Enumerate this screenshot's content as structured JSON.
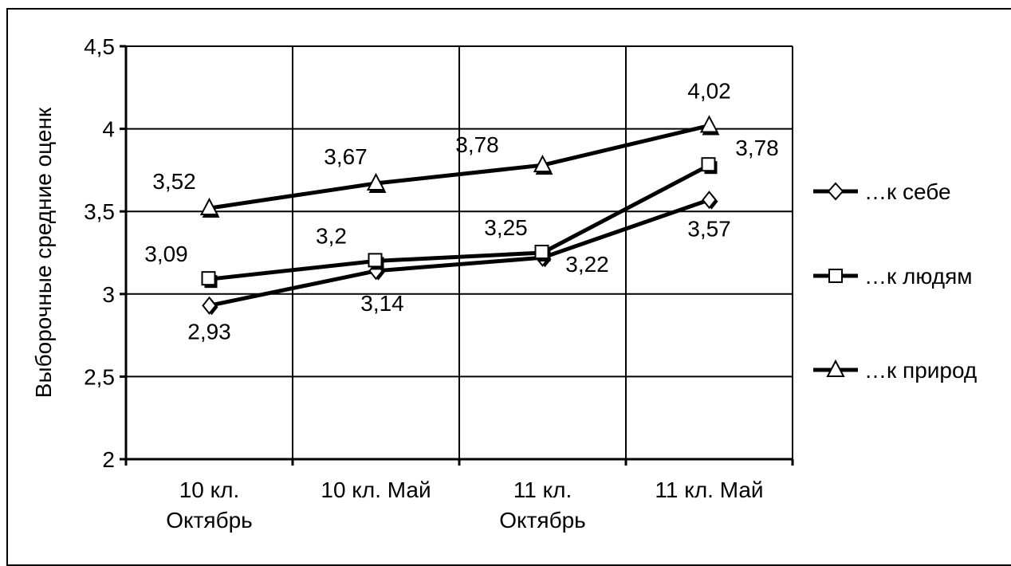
{
  "chart_data": {
    "type": "line",
    "title": "",
    "xlabel": "",
    "ylabel": "Выборочные средние оценк",
    "ylim": [
      2,
      4.5
    ],
    "yticks": [
      "2",
      "2,5",
      "3",
      "3,5",
      "4",
      "4,5"
    ],
    "ytick_values": [
      2,
      2.5,
      3,
      3.5,
      4,
      4.5
    ],
    "categories": [
      [
        "10 кл.",
        "Октябрь"
      ],
      [
        "10 кл. Май"
      ],
      [
        "11 кл.",
        "Октябрь"
      ],
      [
        "11 кл. Май"
      ]
    ],
    "grid": true,
    "legend_position": "right",
    "series": [
      {
        "name": "…к себе",
        "marker": "diamond",
        "values": [
          2.93,
          3.14,
          3.22,
          3.57
        ],
        "labels": [
          "2,93",
          "3,14",
          "3,22",
          "3,57"
        ]
      },
      {
        "name": "…к людям",
        "marker": "square",
        "values": [
          3.09,
          3.2,
          3.25,
          3.78
        ],
        "labels": [
          "3,09",
          "3,2",
          "3,25",
          "3,78"
        ]
      },
      {
        "name": "…к природ",
        "marker": "triangle",
        "values": [
          3.52,
          3.67,
          3.78,
          4.02
        ],
        "labels": [
          "3,52",
          "3,67",
          "3,78",
          "4,02"
        ]
      }
    ],
    "colors": {
      "line": "#000000",
      "marker_fill": "#ffffff",
      "background": "#ffffff"
    }
  }
}
